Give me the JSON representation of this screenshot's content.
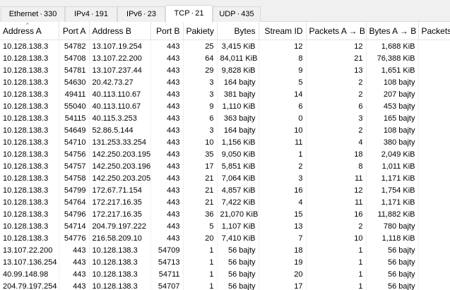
{
  "tabs": [
    {
      "name": "Ethernet",
      "count": "330"
    },
    {
      "name": "IPv4",
      "count": "191"
    },
    {
      "name": "IPv6",
      "count": "23"
    },
    {
      "name": "TCP",
      "count": "21"
    },
    {
      "name": "UDP",
      "count": "435"
    }
  ],
  "tab_separator": "·",
  "active_tab": "TCP",
  "columns": [
    "Address A",
    "Port A",
    "Address B",
    "Port B",
    "Pakiety",
    "Bytes",
    "Stream ID",
    "Packets A → B",
    "Bytes A → B",
    "Packets"
  ],
  "rows": [
    [
      "10.128.138.3",
      "54782",
      "13.107.19.254",
      "443",
      "25",
      "3,415 KiB",
      "12",
      "12",
      "1,688 KiB",
      ""
    ],
    [
      "10.128.138.3",
      "54708",
      "13.107.22.200",
      "443",
      "64",
      "84,011 KiB",
      "8",
      "21",
      "76,388 KiB",
      ""
    ],
    [
      "10.128.138.3",
      "54781",
      "13.107.237.44",
      "443",
      "29",
      "9,828 KiB",
      "9",
      "13",
      "1,651 KiB",
      ""
    ],
    [
      "10.128.138.3",
      "54630",
      "20.42.73.27",
      "443",
      "3",
      "164 bajty",
      "5",
      "2",
      "108 bajty",
      ""
    ],
    [
      "10.128.138.3",
      "49411",
      "40.113.110.67",
      "443",
      "3",
      "381 bajty",
      "14",
      "2",
      "207 bajty",
      ""
    ],
    [
      "10.128.138.3",
      "55040",
      "40.113.110.67",
      "443",
      "9",
      "1,110 KiB",
      "6",
      "6",
      "453 bajty",
      ""
    ],
    [
      "10.128.138.3",
      "54115",
      "40.115.3.253",
      "443",
      "6",
      "363 bajty",
      "0",
      "3",
      "165 bajty",
      ""
    ],
    [
      "10.128.138.3",
      "54649",
      "52.86.5.144",
      "443",
      "3",
      "164 bajty",
      "10",
      "2",
      "108 bajty",
      ""
    ],
    [
      "10.128.138.3",
      "54710",
      "131.253.33.254",
      "443",
      "10",
      "1,156 KiB",
      "11",
      "4",
      "380 bajty",
      ""
    ],
    [
      "10.128.138.3",
      "54756",
      "142.250.203.195",
      "443",
      "35",
      "9,050 KiB",
      "1",
      "18",
      "2,049 KiB",
      ""
    ],
    [
      "10.128.138.3",
      "54757",
      "142.250.203.196",
      "443",
      "17",
      "5,851 KiB",
      "2",
      "8",
      "1,011 KiB",
      ""
    ],
    [
      "10.128.138.3",
      "54758",
      "142.250.203.205",
      "443",
      "21",
      "7,064 KiB",
      "3",
      "11",
      "1,171 KiB",
      ""
    ],
    [
      "10.128.138.3",
      "54799",
      "172.67.71.154",
      "443",
      "21",
      "4,857 KiB",
      "16",
      "12",
      "1,754 KiB",
      ""
    ],
    [
      "10.128.138.3",
      "54764",
      "172.217.16.35",
      "443",
      "21",
      "7,422 KiB",
      "4",
      "11",
      "1,171 KiB",
      ""
    ],
    [
      "10.128.138.3",
      "54796",
      "172.217.16.35",
      "443",
      "36",
      "21,070 KiB",
      "15",
      "16",
      "11,882 KiB",
      ""
    ],
    [
      "10.128.138.3",
      "54714",
      "204.79.197.222",
      "443",
      "5",
      "1,107 KiB",
      "13",
      "2",
      "780 bajty",
      ""
    ],
    [
      "10.128.138.3",
      "54776",
      "216.58.209.10",
      "443",
      "20",
      "7,410 KiB",
      "7",
      "10",
      "1,118 KiB",
      ""
    ],
    [
      "13.107.22.200",
      "443",
      "10.128.138.3",
      "54709",
      "1",
      "56 bajty",
      "18",
      "1",
      "56 bajty",
      ""
    ],
    [
      "13.107.136.254",
      "443",
      "10.128.138.3",
      "54713",
      "1",
      "56 bajty",
      "19",
      "1",
      "56 bajty",
      ""
    ],
    [
      "40.99.148.98",
      "443",
      "10.128.138.3",
      "54711",
      "1",
      "56 bajty",
      "20",
      "1",
      "56 bajty",
      ""
    ],
    [
      "204.79.197.254",
      "443",
      "10.128.138.3",
      "54707",
      "1",
      "56 bajty",
      "17",
      "1",
      "56 bajty",
      ""
    ]
  ]
}
